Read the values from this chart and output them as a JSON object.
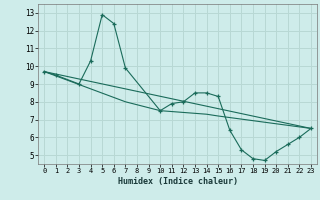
{
  "title": "",
  "xlabel": "Humidex (Indice chaleur)",
  "ylabel": "",
  "background_color": "#ceecea",
  "grid_color": "#b8d8d4",
  "line_color": "#1a6b5a",
  "xlim": [
    -0.5,
    23.5
  ],
  "ylim": [
    4.5,
    13.5
  ],
  "xticks": [
    0,
    1,
    2,
    3,
    4,
    5,
    6,
    7,
    8,
    9,
    10,
    11,
    12,
    13,
    14,
    15,
    16,
    17,
    18,
    19,
    20,
    21,
    22,
    23
  ],
  "yticks": [
    5,
    6,
    7,
    8,
    9,
    10,
    11,
    12,
    13
  ],
  "series1_x": [
    0,
    1,
    3,
    4,
    5,
    6,
    7,
    10,
    11,
    12,
    13,
    14,
    15,
    16,
    17,
    18,
    19,
    20,
    21,
    22,
    23
  ],
  "series1_y": [
    9.7,
    9.5,
    9.0,
    10.3,
    12.9,
    12.4,
    9.9,
    7.5,
    7.9,
    8.0,
    8.5,
    8.5,
    8.3,
    6.4,
    5.3,
    4.8,
    4.7,
    5.2,
    5.6,
    6.0,
    6.5
  ],
  "series2_x": [
    0,
    23
  ],
  "series2_y": [
    9.7,
    6.5
  ],
  "series3_x": [
    0,
    7,
    10,
    14,
    15,
    23
  ],
  "series3_y": [
    9.7,
    8.0,
    7.5,
    7.3,
    7.2,
    6.5
  ]
}
